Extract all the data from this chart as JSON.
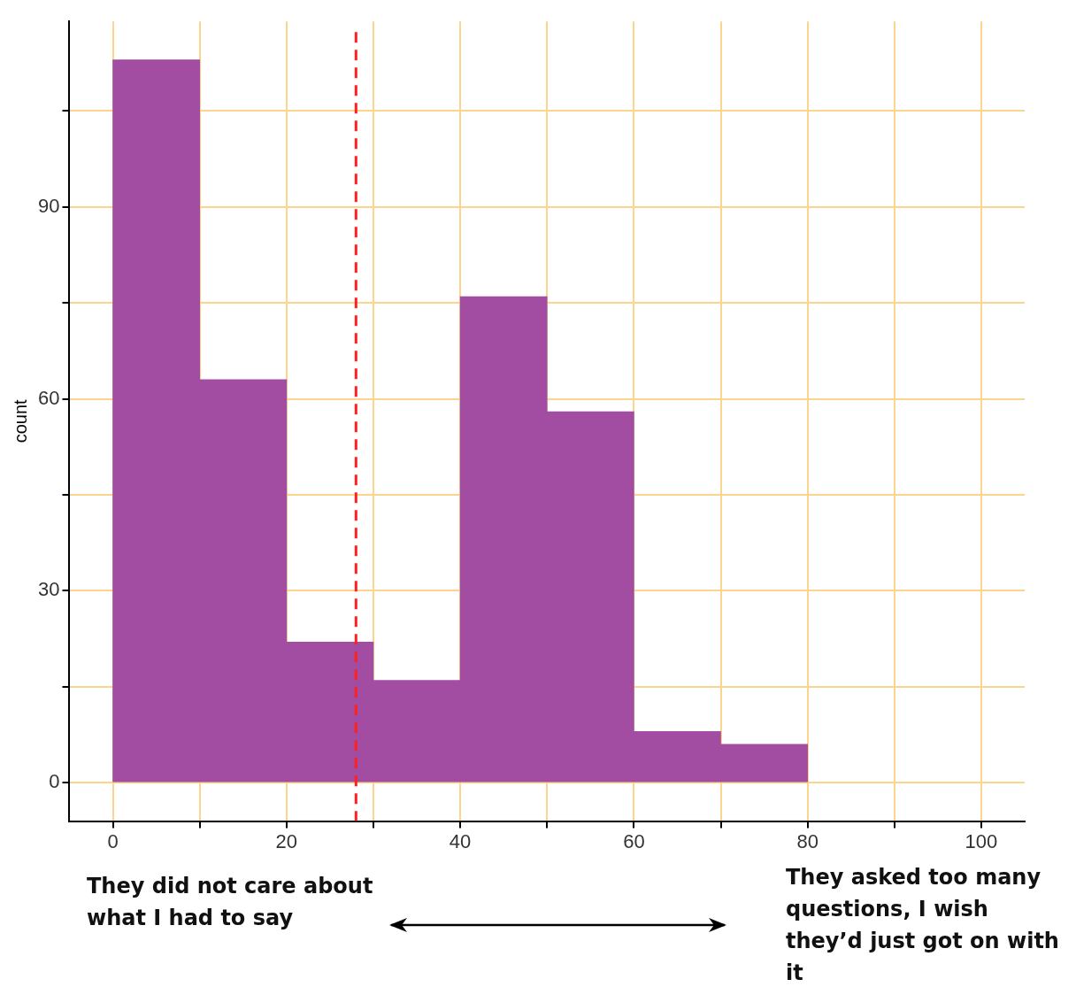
{
  "chart_data": {
    "type": "histogram",
    "ylabel": "count",
    "bins": [
      0,
      10,
      20,
      30,
      40,
      50,
      60,
      70,
      80
    ],
    "values": [
      113,
      63,
      22,
      16,
      76,
      58,
      8,
      6
    ],
    "color": "#a24ca2",
    "xlim": [
      -5,
      105
    ],
    "ylim": [
      -6,
      119
    ],
    "xticks": [
      0,
      {
        "value": 10,
        "label": null
      },
      20,
      {
        "value": 30,
        "label": null
      },
      40,
      {
        "value": 50,
        "label": null
      },
      60,
      {
        "value": 70,
        "label": null
      },
      80,
      {
        "value": 90,
        "label": null
      },
      100
    ],
    "yticks": [
      0,
      {
        "value": 15,
        "label": null
      },
      30,
      {
        "value": 45,
        "label": null
      },
      60,
      {
        "value": 75,
        "label": null
      },
      90,
      {
        "value": 105,
        "label": null
      }
    ],
    "grid": true,
    "ref_lines": [
      {
        "axis": "x",
        "value": 28,
        "color": "#ff2020",
        "line_style": "dashed"
      }
    ],
    "annotations": [
      "They did not care about what I had to say",
      "They asked too many questions, I wish they’d just got on with it"
    ]
  }
}
